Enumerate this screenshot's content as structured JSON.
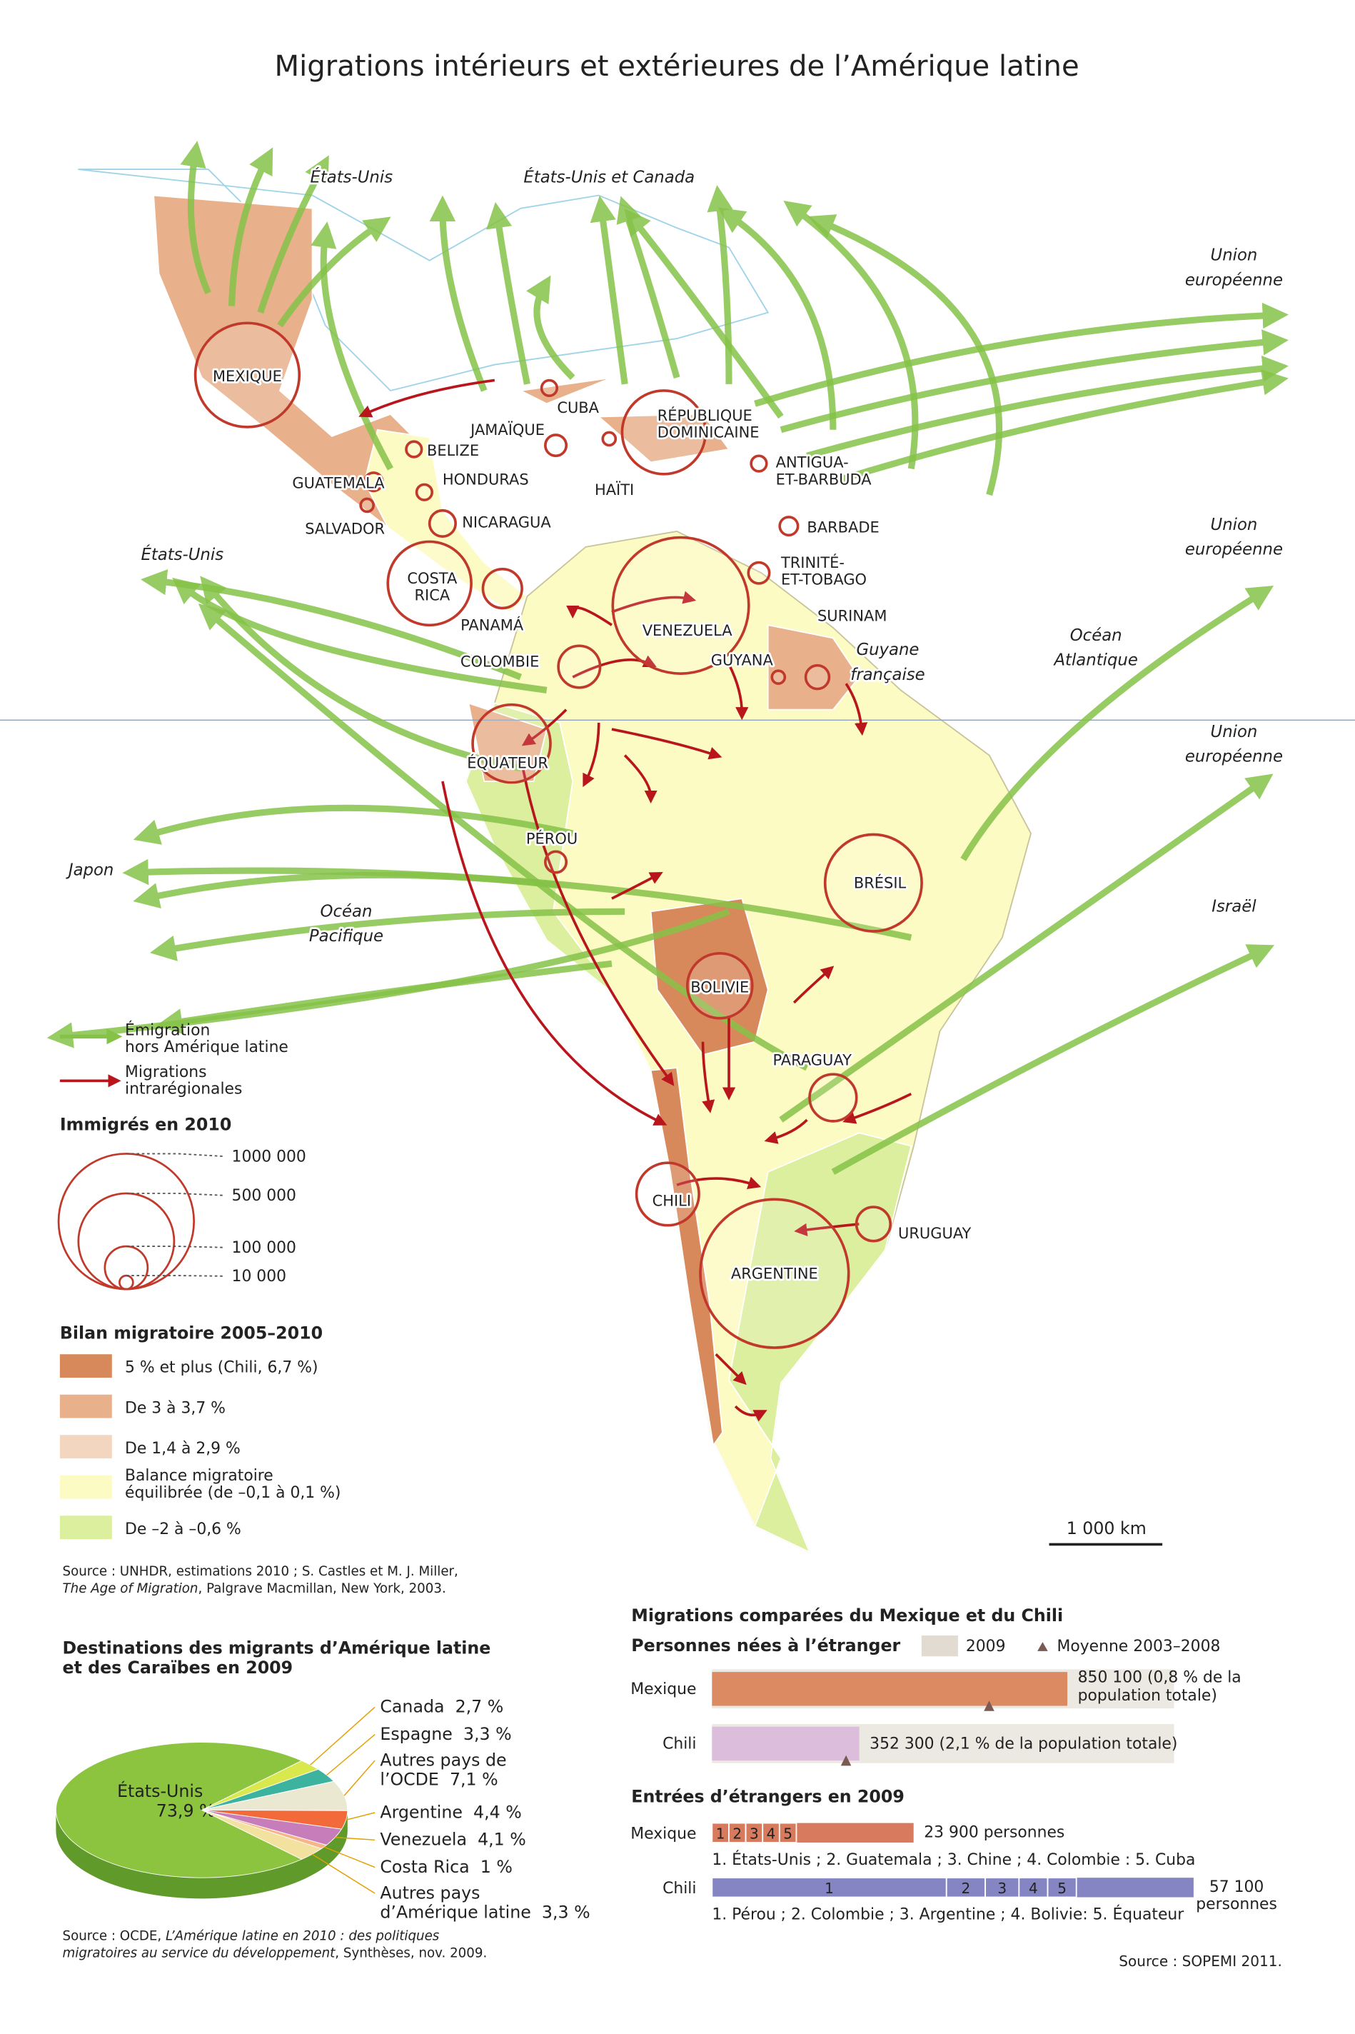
{
  "title": "Migrations intérieurs et extérieures de l’Amérique latine",
  "map": {
    "places": [
      {
        "label": [
          "MEXIQUE"
        ],
        "immigrants": 590000
      },
      {
        "label": [
          "BELIZE"
        ],
        "immigrants": 13000
      },
      {
        "label": [
          "GUATEMALA"
        ],
        "immigrants": 18000
      },
      {
        "label": [
          "HONDURAS"
        ],
        "immigrants": 13000
      },
      {
        "label": [
          "SALVADOR"
        ],
        "immigrants": 9000
      },
      {
        "label": [
          "NICARAGUA"
        ],
        "immigrants": 37000
      },
      {
        "label": [
          "COSTA",
          "RICA"
        ],
        "immigrants": 380000
      },
      {
        "label": [
          "PANAMÁ"
        ],
        "immigrants": 83000
      },
      {
        "label": [
          "CUBA"
        ],
        "immigrants": 13000
      },
      {
        "label": [
          "JAMAÏQUE"
        ],
        "immigrants": 24000
      },
      {
        "label": [
          "HAÏTI"
        ],
        "immigrants": 9000
      },
      {
        "label": [
          "RÉPUBLIQUE",
          "DOMINICAINE"
        ],
        "immigrants": 380000
      },
      {
        "label": [
          "ANTIGUA-",
          "ET-BARBUDA"
        ],
        "immigrants": 13000
      },
      {
        "label": [
          "BARBADE"
        ],
        "immigrants": 18000
      },
      {
        "label": [
          "TRINITÉ-",
          "ET-TOBAGO"
        ],
        "immigrants": 24000
      },
      {
        "label": [
          "COLOMBIE"
        ],
        "immigrants": 95000
      },
      {
        "label": [
          "VENEZUELA"
        ],
        "immigrants": 1010000
      },
      {
        "label": [
          "GUYANA"
        ],
        "immigrants": 9000
      },
      {
        "label": [
          "SURINAM"
        ],
        "immigrants": 30000
      },
      {
        "label": [
          "ÉQUATEUR"
        ],
        "immigrants": 330000
      },
      {
        "label": [
          "PÉROU"
        ],
        "immigrants": 24000
      },
      {
        "label": [
          "BRÉSIL"
        ],
        "immigrants": 510000
      },
      {
        "label": [
          "BOLIVIE"
        ],
        "immigrants": 230000
      },
      {
        "label": [
          "PARAGUAY"
        ],
        "immigrants": 120000
      },
      {
        "label": [
          "CHILI"
        ],
        "immigrants": 213000
      },
      {
        "label": [
          "URUGUAY"
        ],
        "immigrants": 63000
      },
      {
        "label": [
          "ARGENTINE"
        ],
        "immigrants": 1200000
      }
    ],
    "regions": [
      [
        "États-Unis"
      ],
      [
        "États-Unis et Canada"
      ],
      [
        "Union",
        "européenne"
      ],
      [
        "Union",
        "européenne"
      ],
      [
        "Union",
        "européenne"
      ],
      [
        "États-Unis"
      ],
      [
        "Océan",
        "Atlantique"
      ],
      [
        "Guyane",
        "française"
      ],
      [
        "Japon"
      ],
      [
        "Océan",
        "Pacifique"
      ],
      [
        "Israël"
      ]
    ],
    "legend_arrows": [
      [
        "Émigration",
        "hors Amérique latine"
      ],
      [
        "Migrations",
        "intrarégionales"
      ]
    ],
    "immigrants_title": "Immigrés en 2010",
    "immigrants_scale": [
      {
        "value": 1000000,
        "label": "1000 000"
      },
      {
        "value": 500000,
        "label": "500 000"
      },
      {
        "value": 100000,
        "label": "100 000"
      },
      {
        "value": 10000,
        "label": "10 000"
      }
    ],
    "balance_title": "Bilan migratoire 2005–2010",
    "balance_classes": [
      {
        "label": [
          "5 % et plus (Chili, 6,7 %)"
        ],
        "color": "#d8895c"
      },
      {
        "label": [
          "De 3 à 3,7 %"
        ],
        "color": "#e8b18c"
      },
      {
        "label": [
          "De 1,4 à  2,9 %"
        ],
        "color": "#f3d6bf"
      },
      {
        "label": [
          "Balance migratoire",
          "équilibrée (de –0,1 à 0,1 %)"
        ],
        "color": "#fdfbc4"
      },
      {
        "label": [
          "De –2 à –0,6 %"
        ],
        "color": "#dcef9f"
      }
    ],
    "source": [
      "Source : UNHDR, estimations 2010 ; S. Castles et M. J. Miller,",
      "The Age of Migration",
      ", Palgrave Macmillan, New York, 2003."
    ],
    "scale_bar": "1 000 km"
  },
  "pie": {
    "title": [
      "Destinations des migrants d’Amérique latine",
      "et des Caraïbes en 2009"
    ],
    "slices": [
      {
        "name": [
          "États-Unis"
        ],
        "value": 73.9,
        "label": "73,9 %",
        "color": "#8cc43f"
      },
      {
        "name": [
          "Canada"
        ],
        "value": 2.7,
        "label": "2,7 %",
        "color": "#d9e84c"
      },
      {
        "name": [
          "Espagne"
        ],
        "value": 3.3,
        "label": "3,3 %",
        "color": "#3cb39e"
      },
      {
        "name": [
          "Autres pays de",
          "l’OCDE"
        ],
        "value": 7.1,
        "label": "7,1 %",
        "color": "#ebe8d2"
      },
      {
        "name": [
          "Argentine"
        ],
        "value": 4.4,
        "label": "4,4 %",
        "color": "#f26a3a"
      },
      {
        "name": [
          "Venezuela"
        ],
        "value": 4.1,
        "label": "4,1 %",
        "color": "#c87dbb"
      },
      {
        "name": [
          "Costa Rica"
        ],
        "value": 1,
        "label": "1 %",
        "color": "#f7b58a"
      },
      {
        "name": [
          "Autres pays",
          "d’Amérique latine"
        ],
        "value": 3.3,
        "label": "3,3 %",
        "color": "#f3e1a0"
      }
    ],
    "source": [
      "Source : OCDE, ",
      "L’Amérique latine en 2010 : des politiques",
      "migratoires au service du développement",
      ", Synthèses,  nov. 2009."
    ]
  },
  "comparison": {
    "title": "Migrations comparées du Mexique et du Chili",
    "born_title": "Personnes nées à l’étranger",
    "legend": [
      "2009",
      "Moyenne 2003–2008"
    ],
    "born": [
      {
        "name": "Mexique",
        "value": 850100,
        "value_label": [
          "850 100 (0,8 % de la",
          "population totale)"
        ],
        "average": 663000,
        "color": "#dc8a62"
      },
      {
        "name": "Chili",
        "value": 352300,
        "value_label": [
          "352 300 (2,1 % de la population totale)"
        ],
        "average": 320700,
        "color": "#dcbddc"
      }
    ],
    "entries_title": "Entrées d’étrangers en 2009",
    "entries": [
      {
        "name": "Mexique",
        "total": 23900,
        "total_label": [
          "23 900 personnes"
        ],
        "segments": [
          2000,
          2000,
          2000,
          2000,
          2000
        ],
        "segment_labels": [
          "1",
          "2",
          "3",
          "4",
          "5"
        ],
        "origins": "1. États-Unis ; 2. Guatemala ; 3. Chine ; 4. Colombie : 5. Cuba",
        "color": "#d77a5d"
      },
      {
        "name": "Chili",
        "total": 57100,
        "total_label": [
          "57 100",
          "personnes"
        ],
        "segments": [
          27800,
          4600,
          4000,
          3400,
          3400
        ],
        "segment_labels": [
          "1",
          "2",
          "3",
          "4",
          "5"
        ],
        "origins": "1. Pérou ; 2. Colombie ; 3. Argentine ; 4. Bolivie: 5. Équateur",
        "color": "#8585c4"
      }
    ],
    "source": "Source : SOPEMI 2011."
  }
}
